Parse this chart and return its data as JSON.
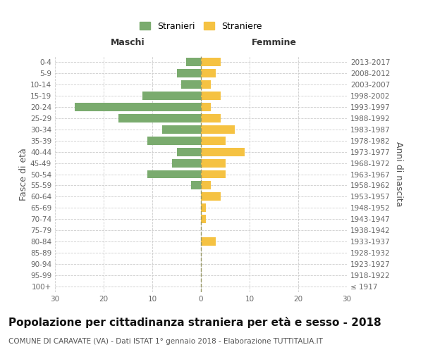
{
  "age_groups": [
    "100+",
    "95-99",
    "90-94",
    "85-89",
    "80-84",
    "75-79",
    "70-74",
    "65-69",
    "60-64",
    "55-59",
    "50-54",
    "45-49",
    "40-44",
    "35-39",
    "30-34",
    "25-29",
    "20-24",
    "15-19",
    "10-14",
    "5-9",
    "0-4"
  ],
  "birth_years": [
    "≤ 1917",
    "1918-1922",
    "1923-1927",
    "1928-1932",
    "1933-1937",
    "1938-1942",
    "1943-1947",
    "1948-1952",
    "1953-1957",
    "1958-1962",
    "1963-1967",
    "1968-1972",
    "1973-1977",
    "1978-1982",
    "1983-1987",
    "1988-1992",
    "1993-1997",
    "1998-2002",
    "2003-2007",
    "2008-2012",
    "2013-2017"
  ],
  "males": [
    0,
    0,
    0,
    0,
    0,
    0,
    0,
    0,
    0,
    2,
    11,
    6,
    5,
    11,
    8,
    17,
    26,
    12,
    4,
    5,
    3
  ],
  "females": [
    0,
    0,
    0,
    0,
    3,
    0,
    1,
    1,
    4,
    2,
    5,
    5,
    9,
    5,
    7,
    4,
    2,
    4,
    2,
    3,
    4
  ],
  "male_color": "#7aab6e",
  "female_color": "#f5c242",
  "background_color": "#ffffff",
  "grid_color": "#cccccc",
  "bar_height": 0.75,
  "xlim": 30,
  "title": "Popolazione per cittadinanza straniera per età e sesso - 2018",
  "subtitle": "COMUNE DI CARAVATE (VA) - Dati ISTAT 1° gennaio 2018 - Elaborazione TUTTITALIA.IT",
  "xlabel_left": "Maschi",
  "xlabel_right": "Femmine",
  "ylabel_left": "Fasce di età",
  "ylabel_right": "Anni di nascita",
  "legend_male": "Stranieri",
  "legend_female": "Straniere",
  "title_fontsize": 11,
  "subtitle_fontsize": 7.5,
  "label_fontsize": 9,
  "tick_fontsize": 7.5,
  "header_fontsize": 9
}
